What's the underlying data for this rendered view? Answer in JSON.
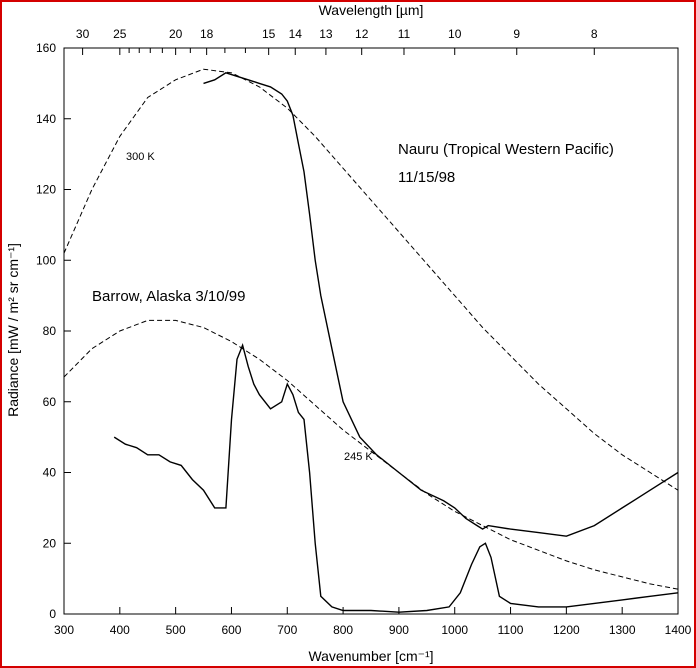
{
  "chart_data": {
    "type": "line",
    "title": "",
    "xlabel": "Wavenumber [cm⁻¹]",
    "ylabel": "Radiance [mW / m² sr cm⁻¹]",
    "x2label": "Wavelength [µm]",
    "xlim": [
      300,
      1400
    ],
    "ylim": [
      0,
      160
    ],
    "xticks": [
      300,
      400,
      500,
      600,
      700,
      800,
      900,
      1000,
      1100,
      1200,
      1300,
      1400
    ],
    "yticks": [
      0,
      20,
      40,
      60,
      80,
      100,
      120,
      140,
      160
    ],
    "top_axis_ticks_um": [
      30,
      25,
      20,
      18,
      15,
      14,
      13,
      12,
      11,
      10,
      9,
      8
    ],
    "grid": false,
    "legend": "none",
    "annotations": [
      {
        "text": "Nauru (Tropical Western Pacific)"
      },
      {
        "text": "11/15/98"
      },
      {
        "text": "Barrow, Alaska 3/10/99"
      },
      {
        "text": "300 K"
      },
      {
        "text": "245 K"
      }
    ],
    "series": [
      {
        "style": "dashed",
        "x": [
          300,
          350,
          400,
          450,
          500,
          550,
          600,
          650,
          700,
          750,
          800,
          850,
          900,
          950,
          1000,
          1050,
          1100,
          1150,
          1200,
          1250,
          1300,
          1350,
          1400
        ],
        "y": [
          102,
          120,
          135,
          146,
          151,
          154,
          153,
          149,
          143,
          135,
          126,
          117,
          108,
          99,
          90,
          81,
          73,
          65,
          58,
          51,
          45,
          40,
          35
        ]
      },
      {
        "style": "dashed",
        "x": [
          300,
          350,
          400,
          450,
          500,
          550,
          600,
          650,
          700,
          750,
          800,
          850,
          900,
          950,
          1000,
          1050,
          1100,
          1150,
          1200,
          1250,
          1300,
          1350,
          1400
        ],
        "y": [
          67,
          75,
          80,
          83,
          83,
          81,
          77,
          72,
          66,
          59,
          52,
          46,
          40,
          34,
          29,
          25,
          21,
          18,
          15,
          12.5,
          10.5,
          8.5,
          7
        ]
      },
      {
        "style": "solid",
        "x": [
          550,
          570,
          590,
          610,
          630,
          650,
          670,
          690,
          700,
          710,
          720,
          730,
          740,
          750,
          760,
          780,
          800,
          830,
          860,
          900,
          940,
          980,
          1000,
          1020,
          1040,
          1050,
          1060,
          1100,
          1150,
          1200,
          1250,
          1300,
          1350,
          1400
        ],
        "y": [
          150,
          151,
          153,
          152,
          151,
          150,
          149,
          147,
          145,
          141,
          133,
          125,
          113,
          100,
          90,
          75,
          60,
          50,
          45,
          40,
          35,
          32,
          30,
          27,
          25,
          24,
          25,
          24,
          23,
          22,
          25,
          30,
          35,
          40
        ]
      },
      {
        "style": "solid",
        "x": [
          390,
          410,
          430,
          450,
          470,
          490,
          510,
          530,
          550,
          570,
          590,
          600,
          610,
          620,
          630,
          640,
          650,
          670,
          690,
          700,
          710,
          720,
          730,
          740,
          750,
          760,
          780,
          800,
          850,
          900,
          950,
          990,
          1010,
          1030,
          1045,
          1055,
          1065,
          1080,
          1100,
          1150,
          1200,
          1250,
          1300,
          1350,
          1400
        ],
        "y": [
          50,
          48,
          47,
          45,
          45,
          43,
          42,
          38,
          35,
          30,
          30,
          55,
          72,
          76,
          70,
          65,
          62,
          58,
          60,
          65,
          62,
          57,
          55,
          40,
          20,
          5,
          2,
          1,
          1,
          0.5,
          1,
          2,
          6,
          14,
          19,
          20,
          16,
          5,
          3,
          2,
          2,
          3,
          4,
          5,
          6
        ]
      }
    ]
  }
}
